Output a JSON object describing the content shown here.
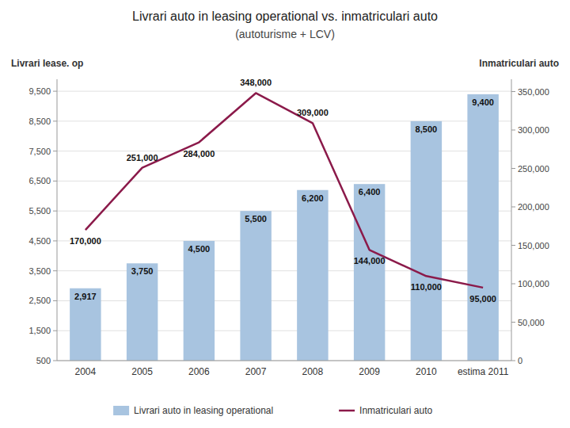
{
  "chart_data": {
    "type": "bar",
    "title": "Livrari auto in leasing operational vs. inmatriculari auto",
    "subtitle": "(autoturisme + LCV)",
    "categories": [
      "2004",
      "2005",
      "2006",
      "2007",
      "2008",
      "2009",
      "2010",
      "estima 2011"
    ],
    "series": [
      {
        "name": "Livrari auto in leasing operational",
        "type": "bar",
        "color": "#a8c4e0",
        "values": [
          2917,
          3750,
          4500,
          5500,
          6200,
          6400,
          8500,
          9400
        ],
        "value_labels": [
          "2,917",
          "3,750",
          "4,500",
          "5,500",
          "6,200",
          "6,400",
          "8,500",
          "9,400"
        ]
      },
      {
        "name": "Inmatriculari auto",
        "type": "line",
        "color": "#8b1a4a",
        "axis": "y2",
        "values": [
          170000,
          251000,
          284000,
          348000,
          309000,
          144000,
          110000,
          95000
        ],
        "value_labels": [
          "170,000",
          "251,000",
          "284,000",
          "348,000",
          "309,000",
          "144,000",
          "110,000",
          "95,000"
        ]
      }
    ],
    "y_label": "Livrari lease. op",
    "y2_label": "Inmatriculari auto",
    "ylim": [
      500,
      9900
    ],
    "yticks": [
      500,
      {
        "value": 1500,
        "label": "1,500"
      },
      {
        "value": 2500,
        "label": "2,500"
      },
      {
        "value": 3500,
        "label": "3,500"
      },
      {
        "value": 4500,
        "label": "4,500"
      },
      {
        "value": 5500,
        "label": "5,500"
      },
      {
        "value": 6500,
        "label": "6,500"
      },
      {
        "value": 7500,
        "label": "7,500"
      },
      {
        "value": 8500,
        "label": "8,500"
      },
      {
        "value": 9500,
        "label": "9,500"
      }
    ],
    "y2lim": [
      0,
      366000
    ],
    "y2ticks": [
      0,
      {
        "value": 50000,
        "label": "50,000"
      },
      {
        "value": 100000,
        "label": "100,000"
      },
      {
        "value": 150000,
        "label": "150,000"
      },
      {
        "value": 200000,
        "label": "200,000"
      },
      {
        "value": 250000,
        "label": "250,000"
      },
      {
        "value": 300000,
        "label": "300,000"
      },
      {
        "value": 350000,
        "label": "350,000"
      }
    ],
    "grid": true,
    "data_labels": true,
    "legend": "bottom"
  }
}
